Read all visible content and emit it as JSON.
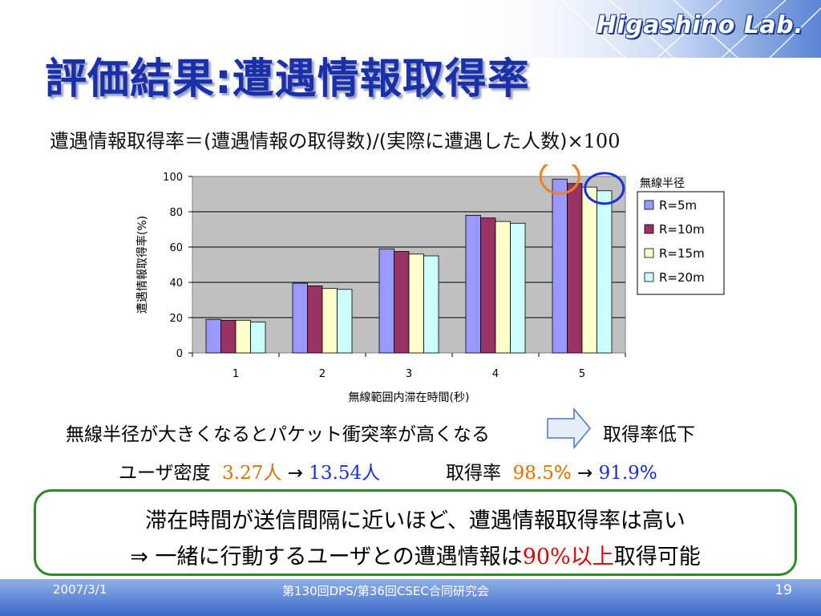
{
  "header": {
    "lab_name": "Higashino Lab.",
    "title": "評価結果:遭遇情報取得率"
  },
  "formula": {
    "text": "遭遇情報取得率＝(遭遇情報の取得数)/(実際に遭遇した人数)×",
    "number": "100"
  },
  "chart_data": {
    "type": "bar",
    "categories": [
      "1",
      "2",
      "3",
      "4",
      "5"
    ],
    "xlabel": "無線範囲内滞在時間(秒)",
    "ylabel": "遭遇情報取得率(%)",
    "ylim": [
      0,
      100
    ],
    "yticks": [
      "0",
      "20",
      "40",
      "60",
      "80",
      "100"
    ],
    "grid": true,
    "legend_title": "無線半径",
    "legend_position": "right",
    "series": [
      {
        "name": "R=5m",
        "color": "#9999ff",
        "values": [
          19,
          39.5,
          59,
          78,
          98.5
        ]
      },
      {
        "name": "R=10m",
        "color": "#993366",
        "values": [
          18.5,
          38,
          57.5,
          76.5,
          96
        ]
      },
      {
        "name": "R=15m",
        "color": "#ffffcc",
        "values": [
          18.5,
          36.5,
          56,
          74.5,
          94
        ]
      },
      {
        "name": "R=20m",
        "color": "#ccffff",
        "values": [
          17.5,
          36,
          55,
          73.5,
          91.9
        ]
      }
    ],
    "plot_bg": "#c0c0c0"
  },
  "notes": {
    "line1": "無線半径が大きくなるとパケット衝突率が高くなる",
    "line1_result": "取得率低下",
    "density_label": "ユーザ密度",
    "density_from": "3.27",
    "density_from_unit": "人",
    "arrow": "→",
    "density_to": "13.54",
    "density_to_unit": "人",
    "rate_label": "取得率",
    "rate_from": "98.5",
    "rate_from_unit": "%",
    "rate_to": "91.9",
    "rate_to_unit": "%"
  },
  "summary": {
    "line1": "滞在時間が送信間隔に近いほど、遭遇情報取得率は高い",
    "line2_prefix": "⇒ 一緒に行動するユーザとの遭遇情報は",
    "line2_value": "90%",
    "line2_emph": "以上",
    "line2_suffix": "取得可能"
  },
  "footer": {
    "date": "2007/3/1",
    "conference": "第130回DPS/第36回CSEC合同研究会",
    "page": "19"
  }
}
